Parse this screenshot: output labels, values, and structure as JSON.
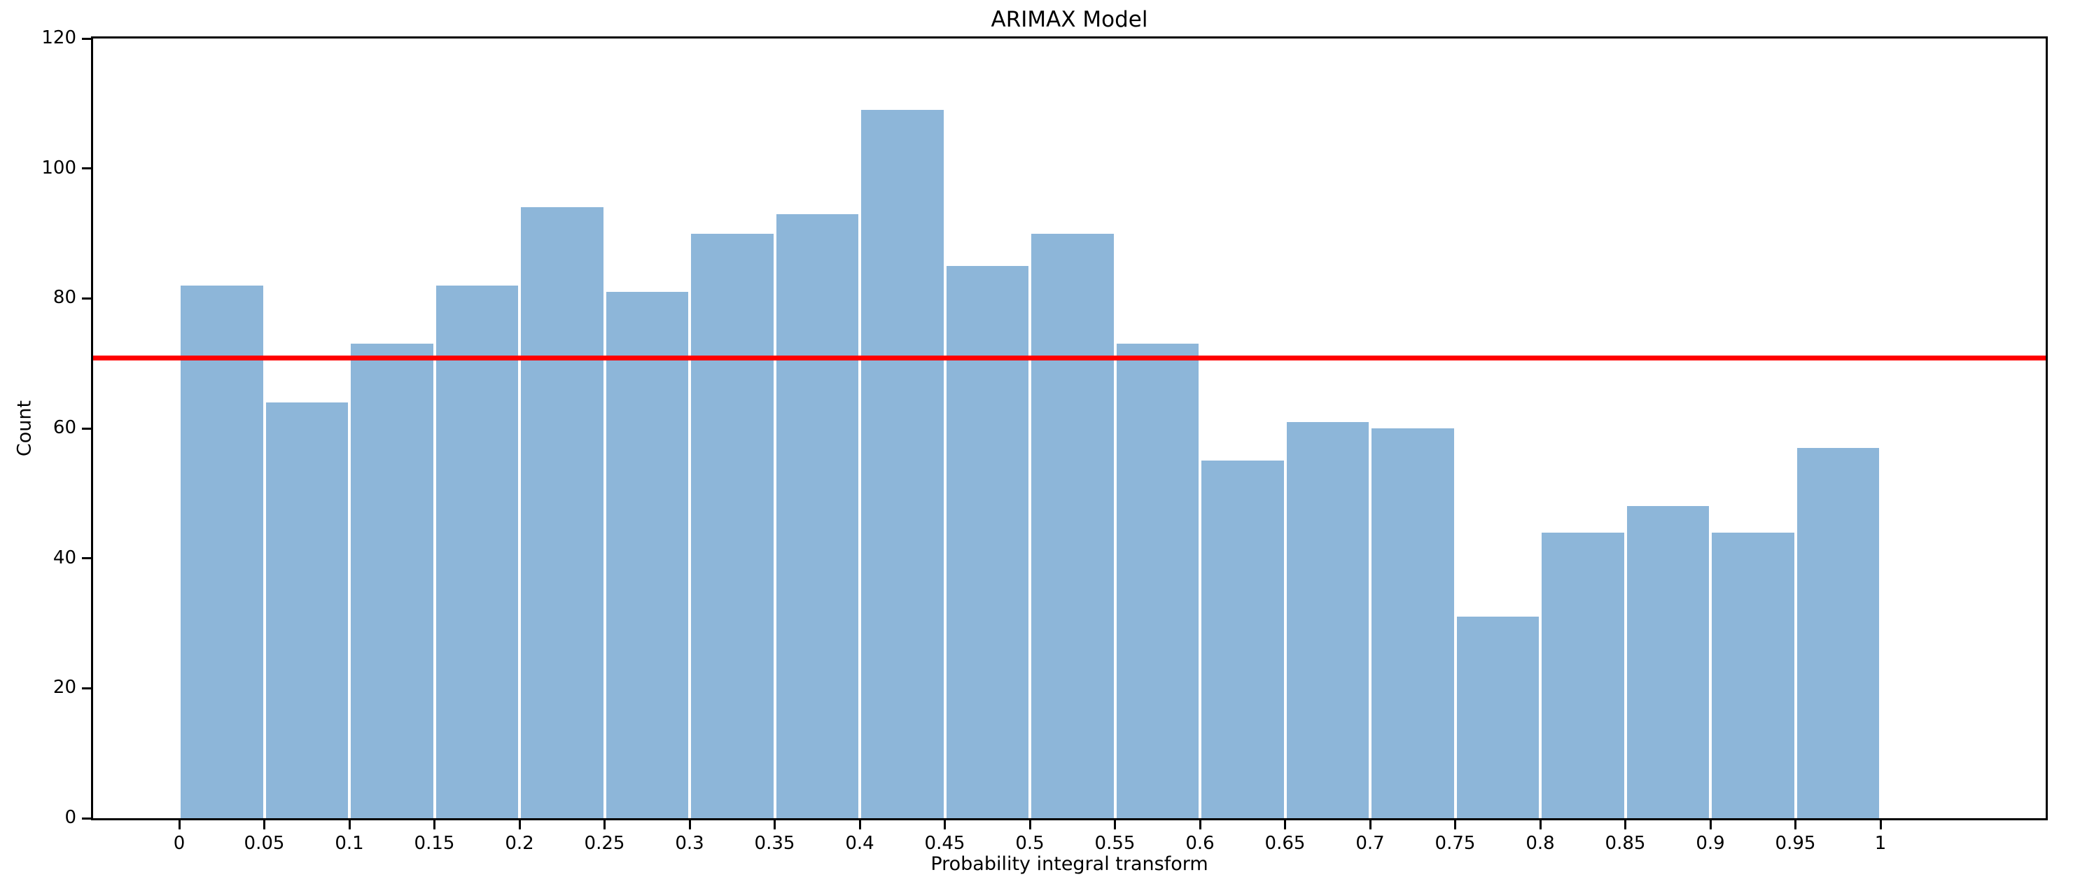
{
  "figure": {
    "background_color": "#ffffff"
  },
  "chart_data": {
    "type": "bar",
    "subtype": "histogram",
    "title": "ARIMAX Model",
    "xlabel": "Probability integral transform",
    "ylabel": "Count",
    "bin_width": 0.05,
    "bin_edges": [
      0,
      0.05,
      0.1,
      0.15,
      0.2,
      0.25,
      0.3,
      0.35,
      0.4,
      0.45,
      0.5,
      0.55,
      0.6,
      0.65,
      0.7,
      0.75,
      0.8,
      0.85,
      0.9,
      0.95,
      1.0
    ],
    "values": [
      82,
      64,
      73,
      82,
      94,
      81,
      90,
      93,
      109,
      85,
      90,
      73,
      55,
      61,
      60,
      31,
      44,
      48,
      44,
      57
    ],
    "xticks": [
      0,
      0.05,
      0.1,
      0.15,
      0.2,
      0.25,
      0.3,
      0.35,
      0.4,
      0.45,
      0.5,
      0.55,
      0.6,
      0.65,
      0.7,
      0.75,
      0.8,
      0.85,
      0.9,
      0.95,
      1
    ],
    "xtick_labels": [
      "0",
      "0.05",
      "0.1",
      "0.15",
      "0.2",
      "0.25",
      "0.3",
      "0.35",
      "0.4",
      "0.45",
      "0.5",
      "0.55",
      "0.6",
      "0.65",
      "0.7",
      "0.75",
      "0.8",
      "0.85",
      "0.9",
      "0.95",
      "1"
    ],
    "yticks": [
      0,
      20,
      40,
      60,
      80,
      100,
      120
    ],
    "ytick_labels": [
      "0",
      "20",
      "40",
      "60",
      "80",
      "100",
      "120"
    ],
    "ylim": [
      0,
      120
    ],
    "grid": false,
    "legend": null,
    "bar_color": "#8db6d9",
    "bar_edge_color": "#ffffff",
    "axis_color": "#000000",
    "reference_line": {
      "orientation": "horizontal",
      "value": 70.8,
      "color": "#ff0000"
    }
  }
}
